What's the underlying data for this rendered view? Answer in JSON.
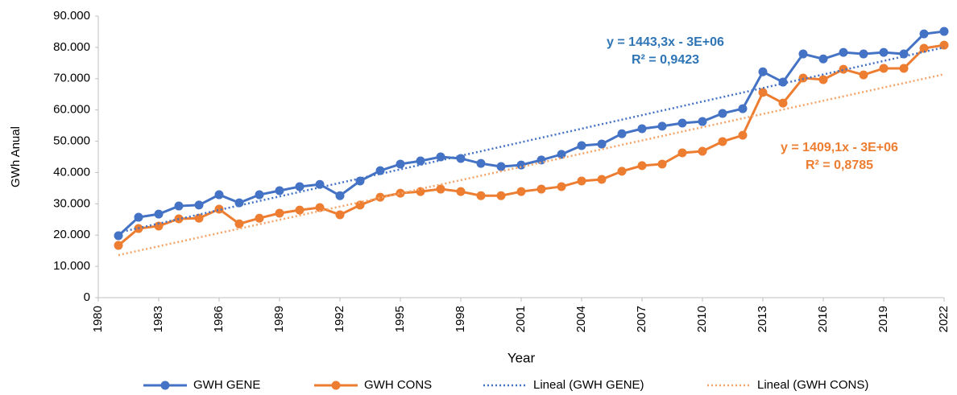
{
  "chart_data": {
    "type": "line",
    "x_label": "Year",
    "y_label": "GWh Anual",
    "x": [
      1981,
      1982,
      1983,
      1984,
      1985,
      1986,
      1987,
      1988,
      1989,
      1990,
      1991,
      1992,
      1993,
      1994,
      1995,
      1996,
      1997,
      1998,
      1999,
      2000,
      2001,
      2002,
      2003,
      2004,
      2005,
      2006,
      2007,
      2008,
      2009,
      2010,
      2011,
      2012,
      2013,
      2014,
      2015,
      2016,
      2017,
      2018,
      2019,
      2020,
      2021,
      2022
    ],
    "series": [
      {
        "name": "GWH GENE",
        "color": "#4472c4",
        "style": "solid",
        "markers": true,
        "values": [
          19800,
          25700,
          26700,
          29300,
          29600,
          32900,
          30300,
          32900,
          34200,
          35500,
          36200,
          32600,
          37300,
          40600,
          42700,
          43700,
          45000,
          44500,
          42900,
          41900,
          42400,
          44000,
          45800,
          48600,
          49100,
          52400,
          54000,
          54800,
          55800,
          56300,
          58900,
          60400,
          72200,
          68900,
          77900,
          76300,
          78400,
          77900,
          78400,
          77900,
          84300,
          85100
        ]
      },
      {
        "name": "GWH CONS",
        "color": "#ed7d31",
        "style": "solid",
        "markers": true,
        "values": [
          16700,
          22100,
          22900,
          25200,
          25400,
          28300,
          23600,
          25400,
          27000,
          28000,
          28800,
          26500,
          29600,
          32100,
          33400,
          33900,
          34700,
          33900,
          32600,
          32600,
          33900,
          34700,
          35500,
          37300,
          37800,
          40400,
          42200,
          42700,
          46300,
          46800,
          49900,
          51900,
          65600,
          62200,
          70200,
          69700,
          73000,
          71200,
          73300,
          73300,
          79700,
          80700
        ]
      },
      {
        "name": "Lineal (GWH GENE)",
        "color": "#4472c4",
        "style": "dotted",
        "markers": false,
        "x": [
          1981,
          2022
        ],
        "values": [
          20800,
          80000
        ]
      },
      {
        "name": "Lineal (GWH CONS)",
        "color": "#f4a469",
        "style": "dotted",
        "markers": false,
        "x": [
          1981,
          2022
        ],
        "values": [
          13600,
          71400
        ]
      }
    ],
    "annotations": [
      {
        "text": "y = 1443,3x - 3E+06",
        "color": "#2e75b6"
      },
      {
        "text": "R² = 0,9423",
        "color": "#2e75b6"
      },
      {
        "text": "y = 1409,1x - 3E+06",
        "color": "#ed7d31"
      },
      {
        "text": "R² = 0,8785",
        "color": "#ed7d31"
      }
    ],
    "xlim": [
      1980,
      2022
    ],
    "xticks": [
      1980,
      1983,
      1986,
      1989,
      1992,
      1995,
      1998,
      2001,
      2004,
      2007,
      2010,
      2013,
      2016,
      2019,
      2022
    ],
    "ylim": [
      0,
      90000
    ],
    "yticks": [
      0,
      {
        "value": 10000,
        "label": "10.000"
      },
      {
        "value": 20000,
        "label": "20.000"
      },
      {
        "value": 30000,
        "label": "30.000"
      },
      {
        "value": 40000,
        "label": "40.000"
      },
      {
        "value": 50000,
        "label": "50.000"
      },
      {
        "value": 60000,
        "label": "60.000"
      },
      {
        "value": 70000,
        "label": "70.000"
      },
      {
        "value": 80000,
        "label": "80.000"
      },
      {
        "value": 90000,
        "label": "90.000"
      }
    ],
    "grid": false,
    "legend": "bottom"
  }
}
